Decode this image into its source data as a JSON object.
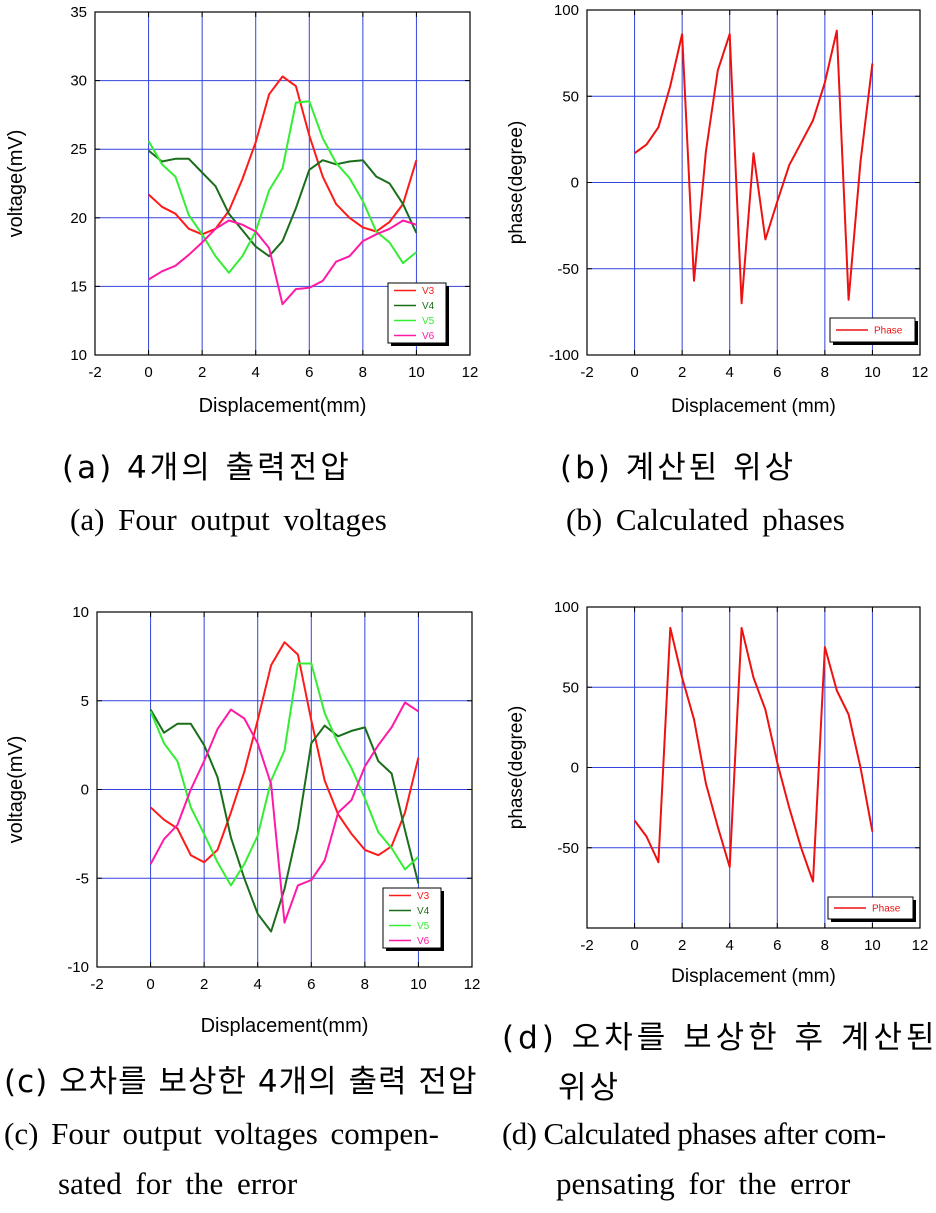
{
  "figure": {
    "captions": {
      "a_ko": "(a) 4개의 출력전압",
      "a_en": "(a) Four output voltages",
      "b_ko": "(b) 계산된 위상",
      "b_en": "(b) Calculated phases",
      "c_ko": "(c) 오차를 보상한 4개의 출력 전압",
      "c_en_1": "(c) Four output voltages compen-",
      "c_en_2": "sated for the error",
      "d_ko_1": "(d) 오차를 보상한 후 계산된",
      "d_ko_2": "위상",
      "d_en_1": "(d) Calculated phases after com-",
      "d_en_2": "pensating for the error"
    }
  },
  "colors": {
    "V3": "#ff1a1a",
    "V4": "#1a6e1a",
    "V5": "#33ee33",
    "V6": "#ff1aa6",
    "Phase": "#ee1111",
    "grid": "#3344dd"
  },
  "chart_data": [
    {
      "id": "a",
      "type": "line",
      "xlabel": "Displacement(mm)",
      "ylabel": "voltage(mV)",
      "xlim": [
        -2,
        12
      ],
      "ylim": [
        10,
        35
      ],
      "xticks": [
        -2,
        0,
        2,
        4,
        6,
        8,
        10,
        12
      ],
      "yticks": [
        10,
        15,
        20,
        25,
        30,
        35
      ],
      "xgrid": [
        0,
        2,
        4,
        6,
        8,
        10
      ],
      "ygrid": [
        15,
        20,
        25,
        30
      ],
      "legend_position": "bottom-right",
      "x": [
        0,
        0.5,
        1,
        1.5,
        2,
        2.5,
        3,
        3.5,
        4,
        4.5,
        5,
        5.5,
        6,
        6.5,
        7,
        7.5,
        8,
        8.5,
        9,
        9.5,
        10
      ],
      "series": [
        {
          "name": "V3",
          "values": [
            21.7,
            20.8,
            20.3,
            19.2,
            18.8,
            19.2,
            20.5,
            22.8,
            25.5,
            29.0,
            30.3,
            29.6,
            26.0,
            23.0,
            21.0,
            20.0,
            19.3,
            19.0,
            19.7,
            21.0,
            24.2
          ]
        },
        {
          "name": "V4",
          "values": [
            24.9,
            24.1,
            24.3,
            24.3,
            23.3,
            22.3,
            20.3,
            19.1,
            17.9,
            17.2,
            18.3,
            20.7,
            23.5,
            24.2,
            23.9,
            24.1,
            24.2,
            23.0,
            22.5,
            21.0,
            18.9
          ]
        },
        {
          "name": "V5",
          "values": [
            25.6,
            23.9,
            23.0,
            20.2,
            18.8,
            17.2,
            16.0,
            17.2,
            19.0,
            22.0,
            23.6,
            28.4,
            28.5,
            25.8,
            24.0,
            22.9,
            21.2,
            19.0,
            18.2,
            16.7,
            17.5
          ]
        },
        {
          "name": "V6",
          "values": [
            15.5,
            16.1,
            16.5,
            17.3,
            18.2,
            19.2,
            19.8,
            19.5,
            19.0,
            17.8,
            13.7,
            14.8,
            14.9,
            15.4,
            16.8,
            17.2,
            18.3,
            18.8,
            19.2,
            19.8,
            19.5
          ]
        }
      ]
    },
    {
      "id": "b",
      "type": "line",
      "xlabel": "Displacement (mm)",
      "ylabel": "phase(degree)",
      "xlim": [
        -2,
        12
      ],
      "ylim": [
        -100,
        100
      ],
      "xticks": [
        -2,
        0,
        2,
        4,
        6,
        8,
        10,
        12
      ],
      "yticks": [
        -100,
        -50,
        0,
        50,
        100
      ],
      "xgrid": [
        0,
        2,
        4,
        6,
        8,
        10
      ],
      "ygrid": [
        -50,
        0,
        50
      ],
      "legend_position": "bottom-right",
      "x": [
        0,
        0.5,
        1,
        1.5,
        2,
        2.5,
        3,
        3.5,
        4,
        4.5,
        5,
        5.5,
        6,
        6.5,
        7,
        7.5,
        8,
        8.5,
        9,
        9.5,
        10
      ],
      "series": [
        {
          "name": "Phase",
          "values": [
            17,
            22,
            32,
            56,
            86,
            -57,
            18,
            65,
            86,
            -70,
            17,
            -33,
            -11,
            10,
            23,
            36,
            58,
            88,
            -68,
            12,
            69
          ]
        }
      ]
    },
    {
      "id": "c",
      "type": "line",
      "xlabel": "Displacement(mm)",
      "ylabel": "voltage(mV)",
      "xlim": [
        -2,
        12
      ],
      "ylim": [
        -10,
        10
      ],
      "xticks": [
        -2,
        0,
        2,
        4,
        6,
        8,
        10,
        12
      ],
      "yticks": [
        -10,
        -5,
        0,
        5,
        10
      ],
      "xgrid": [
        0,
        2,
        4,
        6,
        8,
        10
      ],
      "ygrid": [
        -5,
        0,
        5
      ],
      "legend_position": "bottom-right",
      "x": [
        0,
        0.5,
        1,
        1.5,
        2,
        2.5,
        3,
        3.5,
        4,
        4.5,
        5,
        5.5,
        6,
        6.5,
        7,
        7.5,
        8,
        8.5,
        9,
        9.5,
        10
      ],
      "series": [
        {
          "name": "V3",
          "values": [
            -1.0,
            -1.7,
            -2.2,
            -3.7,
            -4.1,
            -3.4,
            -1.3,
            1.0,
            3.9,
            7.0,
            8.3,
            7.6,
            3.9,
            0.5,
            -1.4,
            -2.5,
            -3.4,
            -3.7,
            -3.2,
            -1.3,
            1.8
          ]
        },
        {
          "name": "V4",
          "values": [
            4.5,
            3.2,
            3.7,
            3.7,
            2.5,
            0.7,
            -2.7,
            -5.0,
            -7.0,
            -8.0,
            -5.6,
            -2.2,
            2.6,
            3.6,
            3.0,
            3.3,
            3.5,
            1.6,
            0.9,
            -2.3,
            -5.3
          ]
        },
        {
          "name": "V5",
          "values": [
            4.4,
            2.6,
            1.6,
            -1.0,
            -2.5,
            -4.1,
            -5.4,
            -4.2,
            -2.6,
            0.5,
            2.2,
            7.1,
            7.1,
            4.3,
            2.6,
            1.2,
            -0.5,
            -2.4,
            -3.3,
            -4.5,
            -3.8
          ]
        },
        {
          "name": "V6",
          "values": [
            -4.2,
            -2.8,
            -2.0,
            0.0,
            1.6,
            3.4,
            4.5,
            4.0,
            2.6,
            0.3,
            -7.5,
            -5.4,
            -5.1,
            -4.0,
            -1.3,
            -0.6,
            1.3,
            2.5,
            3.5,
            4.9,
            4.4
          ]
        }
      ]
    },
    {
      "id": "d",
      "type": "line",
      "xlabel": "Displacement (mm)",
      "ylabel": "phase(degree)",
      "xlim": [
        -2,
        12
      ],
      "ylim": [
        -100,
        100
      ],
      "xticks": [
        -2,
        0,
        2,
        4,
        6,
        8,
        10,
        12
      ],
      "yticks": [
        -50,
        0,
        50,
        100
      ],
      "xgrid": [
        0,
        2,
        4,
        6,
        8,
        10
      ],
      "ygrid": [
        -50,
        0,
        50
      ],
      "legend_position": "bottom-right",
      "x": [
        0,
        0.5,
        1,
        1.5,
        2,
        2.5,
        3,
        3.5,
        4,
        4.5,
        5,
        5.5,
        6,
        6.5,
        7,
        7.5,
        8,
        8.5,
        9,
        9.5,
        10
      ],
      "series": [
        {
          "name": "Phase",
          "values": [
            -33,
            -43,
            -59,
            87,
            56,
            30,
            -10,
            -37,
            -62,
            87,
            56,
            36,
            3,
            -25,
            -50,
            -71,
            75,
            48,
            33,
            0,
            -40
          ]
        }
      ]
    }
  ]
}
